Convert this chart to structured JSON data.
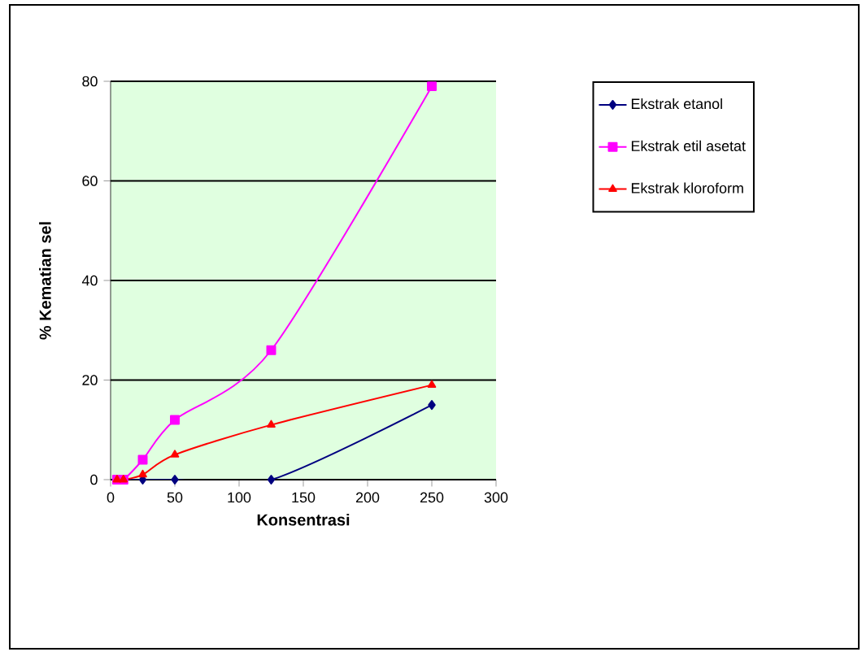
{
  "chart_data": {
    "type": "line",
    "xlabel": "Konsentrasi",
    "ylabel": "% Kematian sel",
    "x": [
      5,
      10,
      25,
      50,
      125,
      250
    ],
    "series": [
      {
        "name": "Ekstrak etanol",
        "color": "#000080",
        "marker": "diamond",
        "values": [
          0,
          0,
          0,
          0,
          0,
          15
        ]
      },
      {
        "name": "Ekstrak etil asetat",
        "color": "#ff00ff",
        "marker": "square",
        "values": [
          0,
          0,
          4,
          12,
          26,
          79
        ]
      },
      {
        "name": "Ekstrak kloroform",
        "color": "#ff0000",
        "marker": "triangle",
        "values": [
          0,
          0,
          1,
          5,
          11,
          19
        ]
      }
    ],
    "xlim": [
      0,
      300
    ],
    "xticks": [
      0,
      50,
      100,
      150,
      200,
      250,
      300
    ],
    "ylim": [
      0,
      80
    ],
    "yticks": [
      0,
      20,
      40,
      60,
      80
    ],
    "grid": "y",
    "legend": "right"
  }
}
